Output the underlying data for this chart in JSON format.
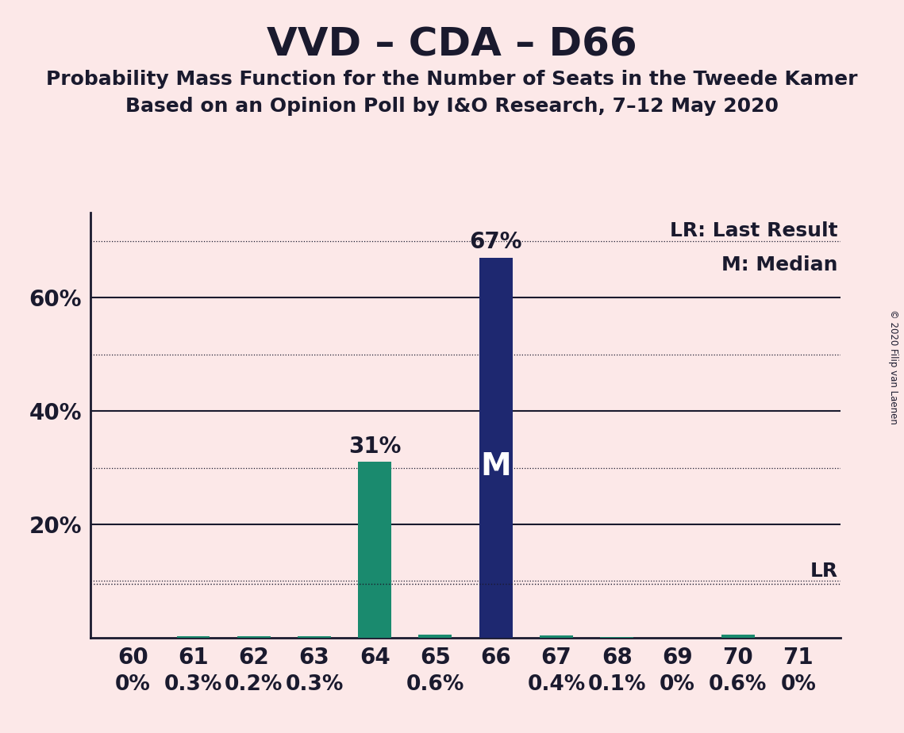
{
  "title": "VVD – CDA – D66",
  "subtitle1": "Probability Mass Function for the Number of Seats in the Tweede Kamer",
  "subtitle2": "Based on an Opinion Poll by I&O Research, 7–12 May 2020",
  "copyright": "© 2020 Filip van Laenen",
  "categories": [
    60,
    61,
    62,
    63,
    64,
    65,
    66,
    67,
    68,
    69,
    70,
    71
  ],
  "values": [
    0.0,
    0.3,
    0.2,
    0.3,
    31.0,
    0.6,
    67.0,
    0.4,
    0.1,
    0.0,
    0.6,
    0.0
  ],
  "labels": [
    "0%",
    "0.3%",
    "0.2%",
    "0.3%",
    "31%",
    "0.6%",
    "67%",
    "0.4%",
    "0.1%",
    "0%",
    "0.6%",
    "0%"
  ],
  "green_color": "#1a8a6e",
  "median_bar": 66,
  "median_bar_color": "#1e2870",
  "last_result_value": 9.5,
  "background_color": "#fce8e8",
  "text_color": "#1a1a2e",
  "ylim": [
    0,
    75
  ],
  "solid_grid_lines": [
    20,
    40,
    60
  ],
  "dotted_grid_lines": [
    10,
    30,
    50,
    70
  ],
  "lr_label": "LR",
  "median_label": "M",
  "legend_text1": "LR: Last Result",
  "legend_text2": "M: Median",
  "title_fontsize": 36,
  "subtitle_fontsize": 18,
  "tick_fontsize": 20,
  "label_fontsize": 20,
  "legend_fontsize": 18
}
